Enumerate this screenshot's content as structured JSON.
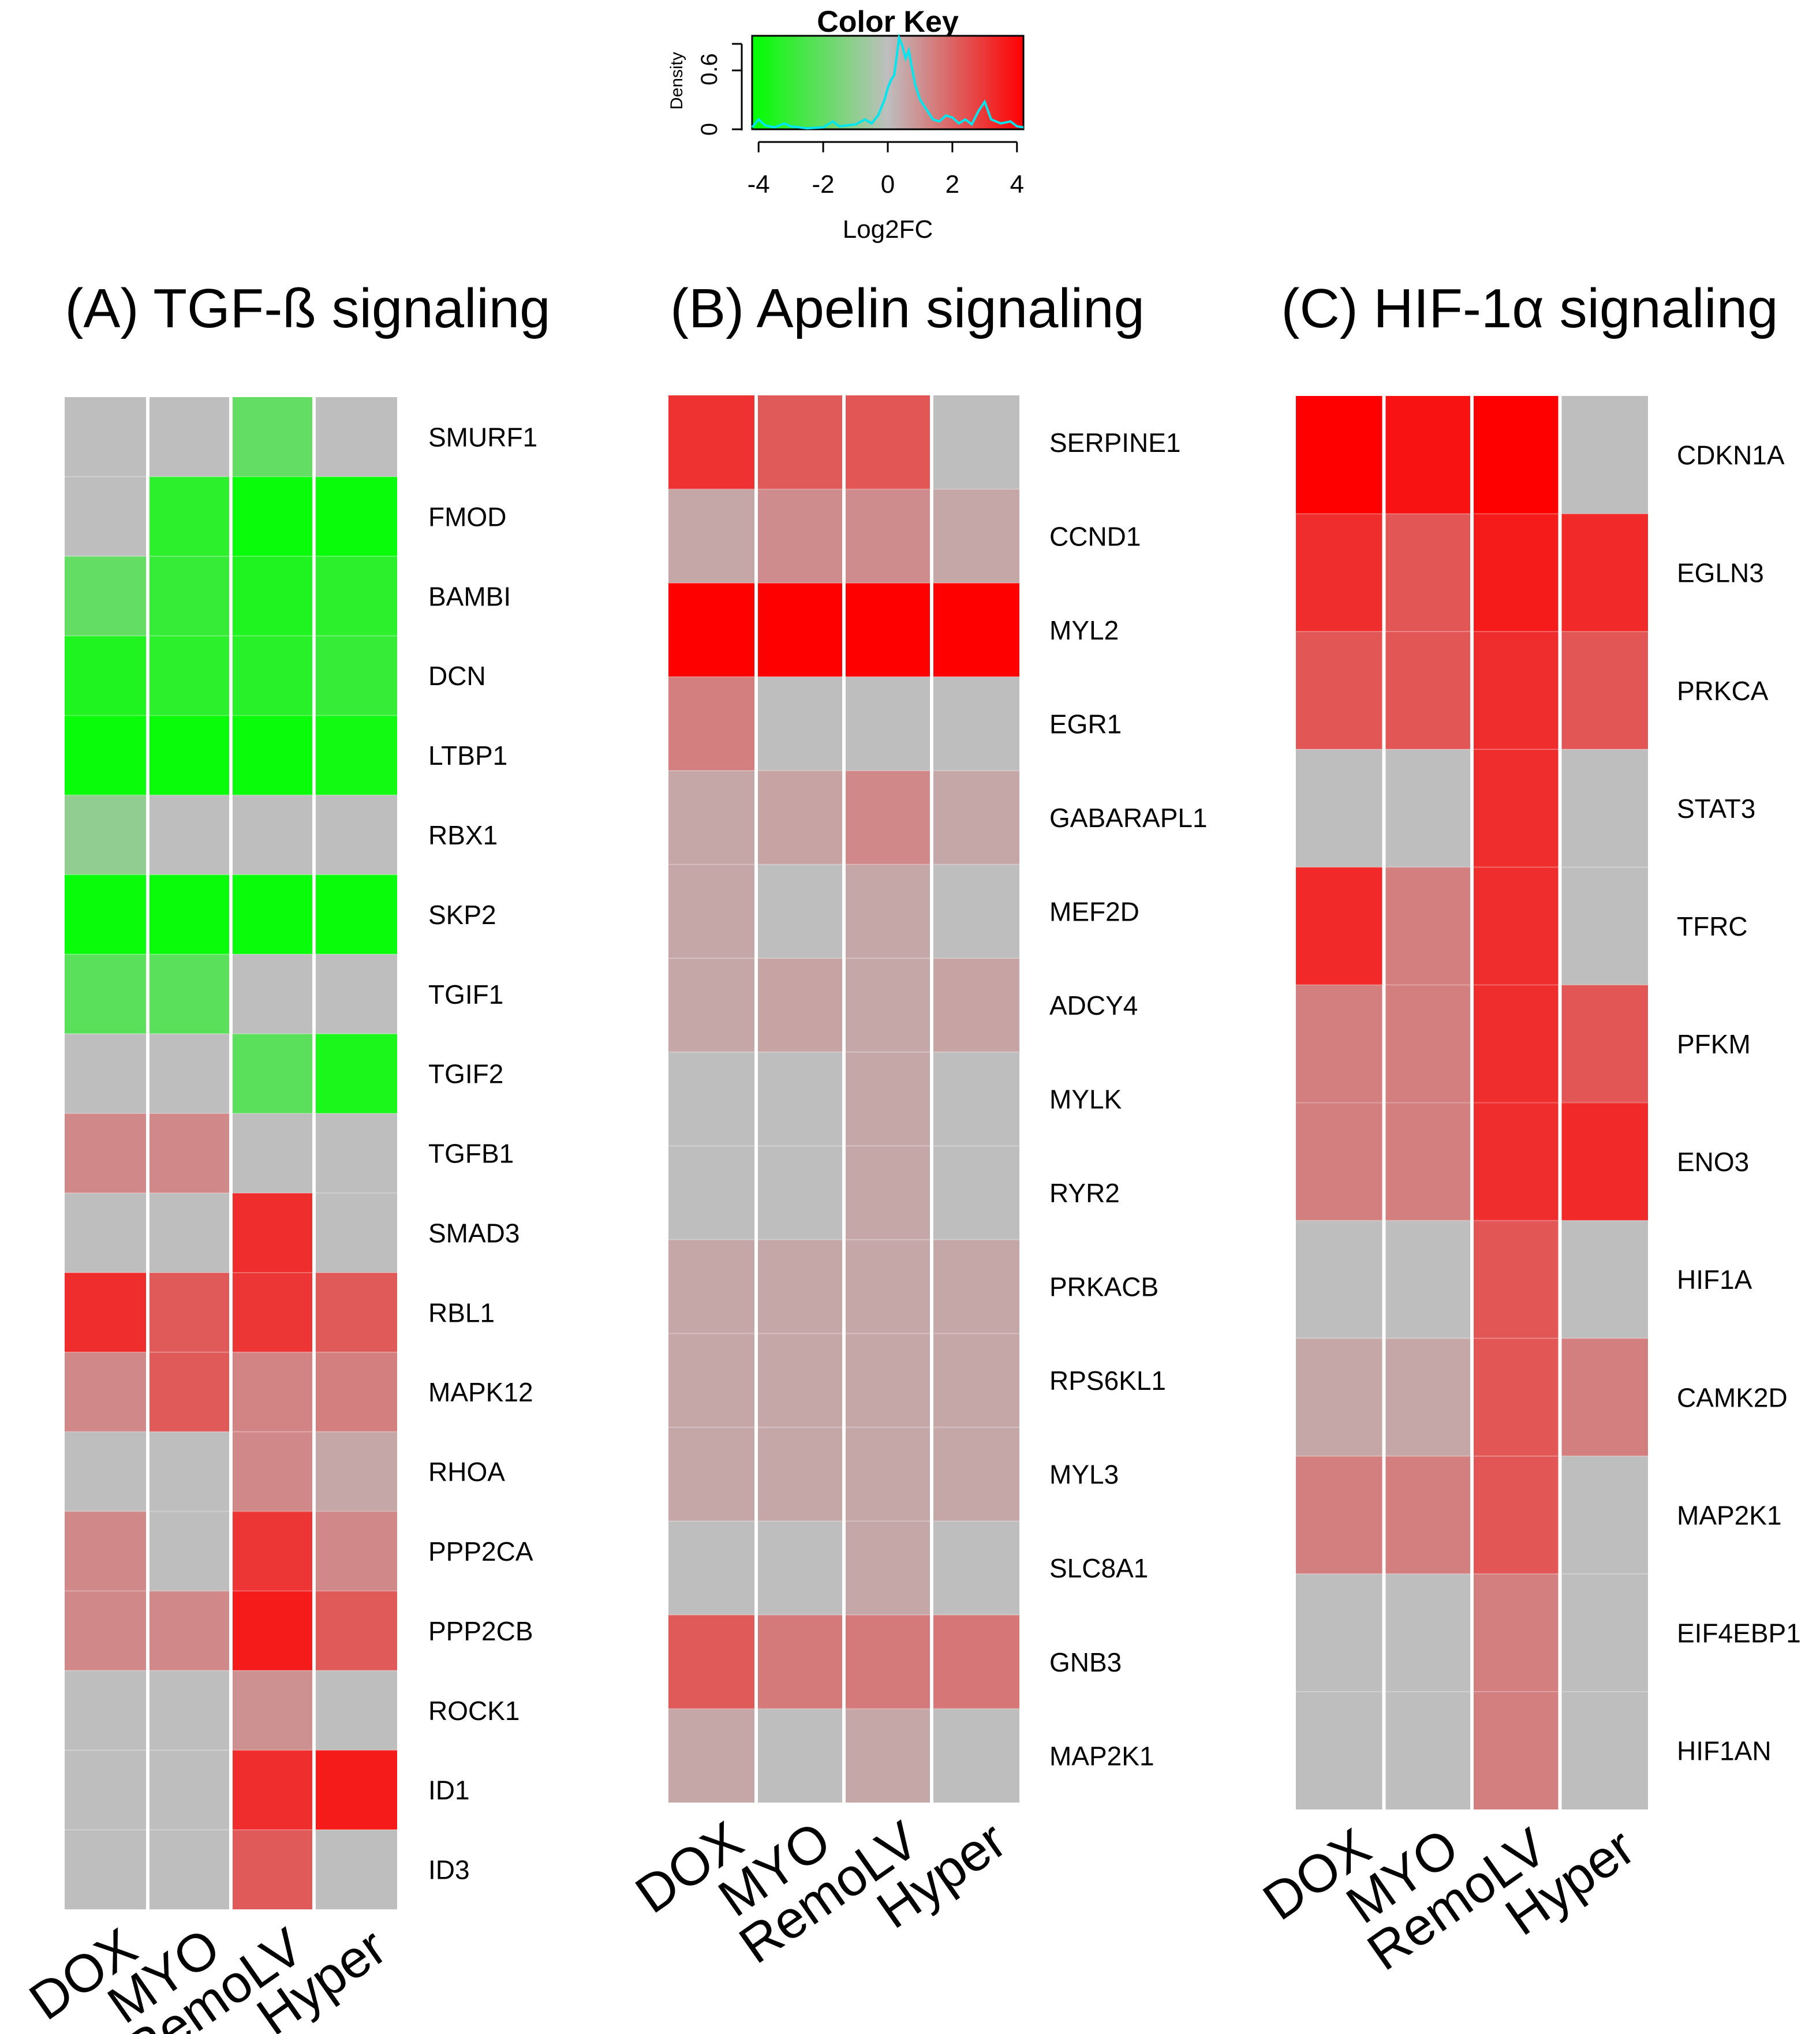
{
  "color_key": {
    "title": "Color Key",
    "xlabel": "Log2FC",
    "ylabel": "Density",
    "x_ticks": [
      "-4",
      "-2",
      "0",
      "2",
      "4"
    ],
    "y_ticks": [
      "0",
      "0.6"
    ],
    "xlim": [
      -4.2,
      4.2
    ],
    "ylim": [
      0,
      0.95
    ],
    "low_color": "#00ff00",
    "mid_color": "#bebebe",
    "high_color": "#ff0000",
    "density_color": "#00e5ee",
    "density_curve": [
      [
        -4.2,
        0.02
      ],
      [
        -4,
        0.1
      ],
      [
        -3.8,
        0.04
      ],
      [
        -3.5,
        0.02
      ],
      [
        -3.2,
        0.06
      ],
      [
        -3,
        0.03
      ],
      [
        -2.5,
        0.01
      ],
      [
        -2,
        0.02
      ],
      [
        -1.7,
        0.08
      ],
      [
        -1.5,
        0.03
      ],
      [
        -1,
        0.05
      ],
      [
        -0.7,
        0.1
      ],
      [
        -0.5,
        0.06
      ],
      [
        -0.3,
        0.14
      ],
      [
        -0.1,
        0.3
      ],
      [
        0,
        0.42
      ],
      [
        0.1,
        0.5
      ],
      [
        0.2,
        0.55
      ],
      [
        0.35,
        0.93
      ],
      [
        0.45,
        0.85
      ],
      [
        0.55,
        0.72
      ],
      [
        0.65,
        0.8
      ],
      [
        0.75,
        0.62
      ],
      [
        0.85,
        0.45
      ],
      [
        1,
        0.3
      ],
      [
        1.2,
        0.2
      ],
      [
        1.4,
        0.1
      ],
      [
        1.6,
        0.08
      ],
      [
        1.8,
        0.14
      ],
      [
        2,
        0.12
      ],
      [
        2.2,
        0.06
      ],
      [
        2.4,
        0.1
      ],
      [
        2.6,
        0.05
      ],
      [
        2.8,
        0.18
      ],
      [
        3,
        0.28
      ],
      [
        3.2,
        0.1
      ],
      [
        3.5,
        0.06
      ],
      [
        3.8,
        0.08
      ],
      [
        4,
        0.03
      ],
      [
        4.2,
        0.02
      ]
    ]
  },
  "chart_data": [
    {
      "type": "heatmap",
      "title": "(A) TGF-ß signaling",
      "columns": [
        "DOX",
        "MYO",
        "RemoLV",
        "Hyper"
      ],
      "rows": [
        "SMURF1",
        "FMOD",
        "BAMBI",
        "DCN",
        "LTBP1",
        "RBX1",
        "SKP2",
        "TGIF1",
        "TGIF2",
        "TGFB1",
        "SMAD3",
        "RBL1",
        "MAPK12",
        "RHOA",
        "PPP2CA",
        "PPP2CB",
        "ROCK1",
        "ID1",
        "ID3"
      ],
      "values": [
        [
          0,
          0,
          -2,
          0
        ],
        [
          0,
          -3.2,
          -4,
          -4
        ],
        [
          -2,
          -3,
          -3.5,
          -3.2
        ],
        [
          -3.5,
          -3.2,
          -3.3,
          -3
        ],
        [
          -4,
          -4,
          -4,
          -3.8
        ],
        [
          -1,
          0,
          0,
          0
        ],
        [
          -4,
          -4,
          -4,
          -4
        ],
        [
          -2.2,
          -2.2,
          0,
          0
        ],
        [
          0,
          0,
          -2.2,
          -3.6
        ],
        [
          1.2,
          1.2,
          0,
          0
        ],
        [
          0,
          0,
          3.2,
          0
        ],
        [
          3.2,
          2.2,
          3,
          2.2
        ],
        [
          1.2,
          2.2,
          1.3,
          1.4
        ],
        [
          0,
          0,
          1.2,
          0.5
        ],
        [
          1.2,
          0,
          3,
          1.2
        ],
        [
          1.2,
          1.2,
          3.6,
          2.2
        ],
        [
          0,
          0,
          1,
          0
        ],
        [
          0,
          0,
          3.2,
          3.6
        ],
        [
          0,
          0,
          2.2,
          0
        ]
      ]
    },
    {
      "type": "heatmap",
      "title": "(B) Apelin signaling",
      "columns": [
        "DOX",
        "MYO",
        "RemoLV",
        "Hyper"
      ],
      "rows": [
        "SERPINE1",
        "CCND1",
        "MYL2",
        "EGR1",
        "GABARAPL1",
        "MEF2D",
        "ADCY4",
        "MYLK",
        "RYR2",
        "PRKACB",
        "RPS6KL1",
        "MYL3",
        "SLC8A1",
        "GNB3",
        "MAP2K1"
      ],
      "values": [
        [
          3.1,
          2.2,
          2.3,
          0
        ],
        [
          0.5,
          1.1,
          1.1,
          0.5
        ],
        [
          4.2,
          4.2,
          4.2,
          4.2
        ],
        [
          1.4,
          0,
          0,
          0
        ],
        [
          0.5,
          0.6,
          1.2,
          0.5
        ],
        [
          0.5,
          0,
          0.5,
          0
        ],
        [
          0.5,
          0.6,
          0.5,
          0.6
        ],
        [
          0,
          0,
          0.5,
          0
        ],
        [
          0,
          0,
          0.5,
          0
        ],
        [
          0.5,
          0.5,
          0.5,
          0.5
        ],
        [
          0.5,
          0.5,
          0.5,
          0.5
        ],
        [
          0.5,
          0.5,
          0.5,
          0.5
        ],
        [
          0,
          0,
          0.5,
          0
        ],
        [
          2.2,
          1.5,
          1.5,
          1.6
        ],
        [
          0.5,
          0,
          0.5,
          0
        ]
      ]
    },
    {
      "type": "heatmap",
      "title": "(C) HIF-1α signaling",
      "columns": [
        "DOX",
        "MYO",
        "RemoLV",
        "Hyper"
      ],
      "rows": [
        "CDKN1A",
        "EGLN3",
        "PRKCA",
        "STAT3",
        "TFRC",
        "PFKM",
        "ENO3",
        "HIF1A",
        "CAMK2D",
        "MAP2K1",
        "EIF4EBP1",
        "HIF1AN"
      ],
      "values": [
        [
          4.2,
          3.8,
          4.2,
          0
        ],
        [
          3.2,
          2.3,
          3.6,
          3.3
        ],
        [
          2.3,
          2.3,
          3.2,
          2.3
        ],
        [
          0,
          0,
          3.2,
          0
        ],
        [
          3.3,
          1.4,
          3.2,
          0
        ],
        [
          1.4,
          1.4,
          3.2,
          2.3
        ],
        [
          1.4,
          1.4,
          3.2,
          3.3
        ],
        [
          0,
          0,
          2.3,
          0
        ],
        [
          0.5,
          0.5,
          2.3,
          1.4
        ],
        [
          1.4,
          1.4,
          2.3,
          0
        ],
        [
          0,
          0,
          1.4,
          0
        ],
        [
          0,
          0,
          1.4,
          0
        ]
      ]
    }
  ]
}
